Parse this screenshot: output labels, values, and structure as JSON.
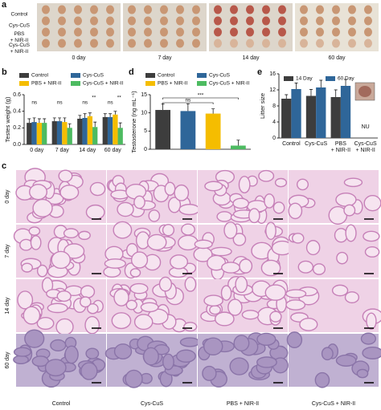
{
  "panel_a": {
    "letter": "a",
    "rows": [
      "Control",
      "Cys-CuS",
      "PBS\n+ NIR-II",
      "Cys-CuS\n+ NIR-II"
    ],
    "columns": [
      "0 day",
      "7 day",
      "14 day",
      "60 day"
    ]
  },
  "chart_data": [
    {
      "type": "bar",
      "letter": "b",
      "y_label": "Testes weight (g)",
      "categories": [
        "0 day",
        "7 day",
        "14 day",
        "60 day"
      ],
      "series": [
        {
          "name": "Control",
          "color": "#3d3d3d",
          "values": [
            0.26,
            0.28,
            0.31,
            0.33
          ],
          "errors": [
            0.05,
            0.04,
            0.04,
            0.04
          ]
        },
        {
          "name": "Cys-CuS",
          "color": "#2f6699",
          "values": [
            0.27,
            0.28,
            0.32,
            0.33
          ],
          "errors": [
            0.05,
            0.04,
            0.05,
            0.04
          ]
        },
        {
          "name": "PBS + NIR-II",
          "color": "#f5bd00",
          "values": [
            0.26,
            0.27,
            0.34,
            0.36
          ],
          "errors": [
            0.05,
            0.05,
            0.04,
            0.04
          ]
        },
        {
          "name": "Cys-CuS + NIR-II",
          "color": "#4dbb61",
          "values": [
            0.26,
            0.2,
            0.21,
            0.2
          ],
          "errors": [
            0.05,
            0.05,
            0.06,
            0.06
          ]
        }
      ],
      "annotations": [
        [
          "ns"
        ],
        [
          "ns"
        ],
        [
          "ns",
          "**"
        ],
        [
          "ns",
          "**"
        ]
      ],
      "ylim": [
        0,
        0.6
      ],
      "yticks": [
        {
          "value": 0,
          "label": "0.0"
        },
        {
          "value": 0.2,
          "label": "0.2"
        },
        {
          "value": 0.4,
          "label": "0.4"
        },
        {
          "value": 0.6,
          "label": "0.6"
        }
      ]
    },
    {
      "type": "bar",
      "letter": "d",
      "y_label": "Testosterone (ng mL⁻¹)",
      "categories": [
        "Control",
        "Cys-CuS",
        "PBS + NIR-II",
        "Cys-CuS + NIR-II"
      ],
      "colors": [
        "#3d3d3d",
        "#2f6699",
        "#f5bd00",
        "#4dbb61"
      ],
      "values": [
        10.8,
        10.5,
        9.8,
        1.0
      ],
      "errors": [
        1.6,
        2.0,
        1.3,
        1.5
      ],
      "annotations": [
        "ns",
        "***"
      ],
      "ylim": [
        0,
        15
      ],
      "yticks": [
        0,
        5,
        10,
        15
      ]
    },
    {
      "type": "bar",
      "letter": "e",
      "y_label": "Litter size",
      "categories": [
        "Control",
        "Cys-CuS",
        "PBS\n+ NIR-II",
        "Cys-CuS\n+ NIR-II"
      ],
      "series": [
        {
          "name": "14 Day",
          "color": "#3d3d3d",
          "values": [
            9.8,
            10.5,
            10.2,
            null
          ],
          "errors": [
            1.0,
            1.6,
            1.8,
            null
          ]
        },
        {
          "name": "60 Day",
          "color": "#2f6699",
          "values": [
            12.2,
            12.6,
            13.0,
            null
          ],
          "errors": [
            1.5,
            1.8,
            1.6,
            null
          ]
        }
      ],
      "annotations": [
        null,
        null,
        null,
        "NU"
      ],
      "ylim": [
        0,
        16
      ],
      "yticks": [
        0,
        4,
        8,
        12,
        16
      ]
    }
  ],
  "panel_c": {
    "letter": "c",
    "rows": [
      "0 day",
      "7 day",
      "14 day",
      "60 day"
    ],
    "columns": [
      "Control",
      "Cys-CuS",
      "PBS + NIR-II",
      "Cys-CuS + NIR-II"
    ]
  }
}
